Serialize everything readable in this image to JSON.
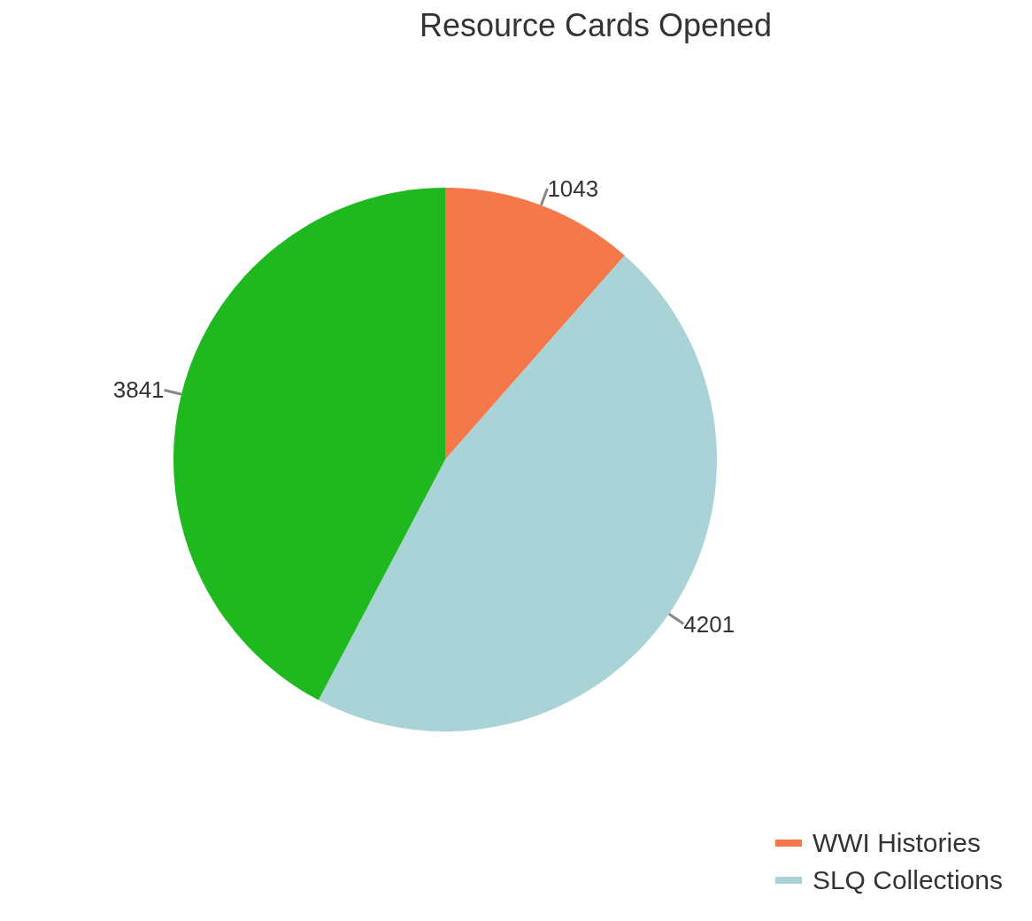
{
  "chart_data": {
    "type": "pie",
    "title": "Resource Cards Opened",
    "categories": [
      "WWI Histories",
      "SLQ Collections",
      null
    ],
    "values": [
      1043,
      4201,
      3841
    ],
    "colors": [
      "#f4784a",
      "#a9d3d6",
      "#1fb81f"
    ],
    "data_labels": true,
    "legend": "bottom right"
  }
}
